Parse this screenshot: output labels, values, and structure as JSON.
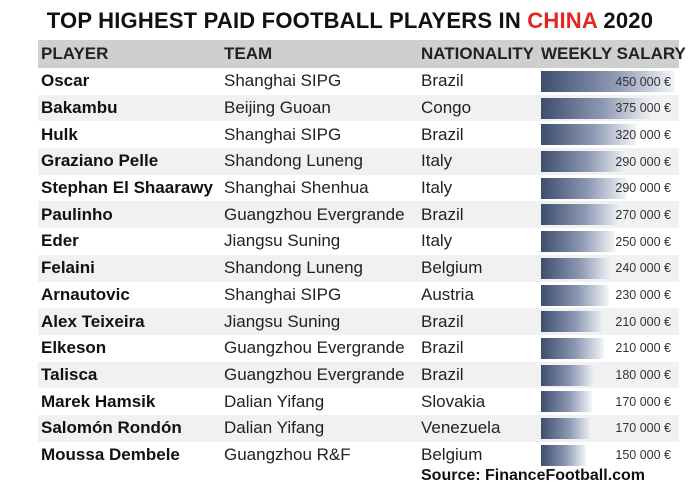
{
  "title": {
    "prefix": "TOP HIGHEST PAID FOOTBALL PLAYERS IN ",
    "highlight": "CHINA",
    "suffix": " 2020"
  },
  "headers": {
    "player": "PLAYER",
    "team": "TEAM",
    "nationality": "NATIONALITY",
    "salary": "WEEKLY SALARY"
  },
  "colors": {
    "highlight": "#e52521",
    "bar_dark": "#3e4d6e",
    "header_bg": "#cfcfcf"
  },
  "source": "Source: FinanceFootball.com",
  "chart_data": {
    "type": "bar",
    "title": "TOP HIGHEST PAID FOOTBALL PLAYERS IN CHINA 2020",
    "xlabel": "",
    "ylabel": "WEEKLY SALARY",
    "ylim": [
      0,
      450000
    ],
    "rows": [
      {
        "player": "Oscar",
        "team": "Shanghai SIPG",
        "nationality": "Brazil",
        "salary": 450000,
        "salary_label": "450 000 €"
      },
      {
        "player": "Bakambu",
        "team": "Beijing Guoan",
        "nationality": "Congo",
        "salary": 375000,
        "salary_label": "375 000 €"
      },
      {
        "player": "Hulk",
        "team": "Shanghai SIPG",
        "nationality": "Brazil",
        "salary": 320000,
        "salary_label": "320 000 €"
      },
      {
        "player": "Graziano Pelle",
        "team": "Shandong Luneng",
        "nationality": "Italy",
        "salary": 290000,
        "salary_label": "290 000 €"
      },
      {
        "player": "Stephan El Shaarawy",
        "team": "Shanghai Shenhua",
        "nationality": "Italy",
        "salary": 290000,
        "salary_label": "290 000 €"
      },
      {
        "player": "Paulinho",
        "team": "Guangzhou Evergrande",
        "nationality": "Brazil",
        "salary": 270000,
        "salary_label": "270 000 €"
      },
      {
        "player": "Eder",
        "team": "Jiangsu Suning",
        "nationality": "Italy",
        "salary": 250000,
        "salary_label": "250 000 €"
      },
      {
        "player": "Felaini",
        "team": "Shandong Luneng",
        "nationality": "Belgium",
        "salary": 240000,
        "salary_label": "240 000 €"
      },
      {
        "player": "Arnautovic",
        "team": "Shanghai SIPG",
        "nationality": "Austria",
        "salary": 230000,
        "salary_label": "230 000 €"
      },
      {
        "player": "Alex Teixeira",
        "team": "Jiangsu Suning",
        "nationality": "Brazil",
        "salary": 210000,
        "salary_label": "210 000 €"
      },
      {
        "player": "Elkeson",
        "team": "Guangzhou Evergrande",
        "nationality": "Brazil",
        "salary": 210000,
        "salary_label": "210 000 €"
      },
      {
        "player": "Talisca",
        "team": "Guangzhou Evergrande",
        "nationality": "Brazil",
        "salary": 180000,
        "salary_label": "180 000 €"
      },
      {
        "player": "Marek Hamsik",
        "team": "Dalian Yifang",
        "nationality": "Slovakia",
        "salary": 170000,
        "salary_label": "170 000 €"
      },
      {
        "player": "Salomón Rondón",
        "team": "Dalian Yifang",
        "nationality": "Venezuela",
        "salary": 170000,
        "salary_label": "170 000 €"
      },
      {
        "player": "Moussa Dembele",
        "team": "Guangzhou R&F",
        "nationality": "Belgium",
        "salary": 150000,
        "salary_label": "150 000 €"
      }
    ]
  }
}
